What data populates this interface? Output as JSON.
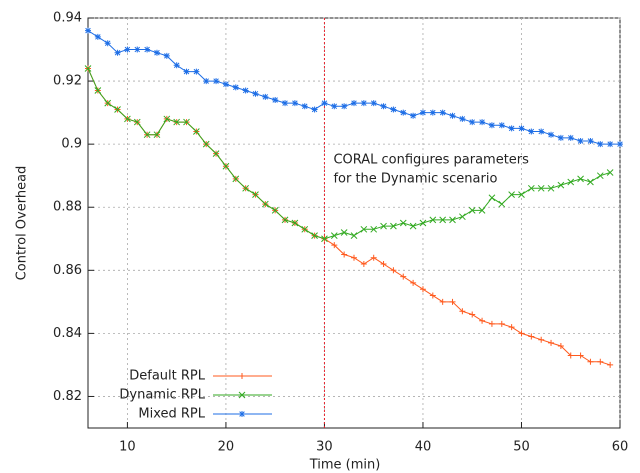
{
  "chart_data": {
    "type": "line",
    "xlabel": "Time (min)",
    "ylabel": "Control Overhead",
    "x": [
      6,
      7,
      8,
      9,
      10,
      11,
      12,
      13,
      14,
      15,
      16,
      17,
      18,
      19,
      20,
      21,
      22,
      23,
      24,
      25,
      26,
      27,
      28,
      29,
      30,
      31,
      32,
      33,
      34,
      35,
      36,
      37,
      38,
      39,
      40,
      41,
      42,
      43,
      44,
      45,
      46,
      47,
      48,
      49,
      50,
      51,
      52,
      53,
      54,
      55,
      56,
      57,
      58,
      59,
      60
    ],
    "series": [
      {
        "name": "Default RPL",
        "color": "#ff5a1e",
        "marker": "plus",
        "values": [
          0.924,
          0.917,
          0.913,
          0.911,
          0.908,
          0.907,
          0.903,
          0.903,
          0.908,
          0.907,
          0.907,
          0.904,
          0.9,
          0.897,
          0.893,
          0.889,
          0.886,
          0.884,
          0.881,
          0.879,
          0.876,
          0.875,
          0.873,
          0.871,
          0.87,
          0.868,
          0.865,
          0.864,
          0.862,
          0.864,
          0.862,
          0.86,
          0.858,
          0.856,
          0.854,
          0.852,
          0.85,
          0.85,
          0.847,
          0.846,
          0.844,
          0.843,
          0.843,
          0.842,
          0.84,
          0.839,
          0.838,
          0.837,
          0.836,
          0.833,
          0.833,
          0.831,
          0.831,
          0.83,
          null
        ]
      },
      {
        "name": "Dynamic RPL",
        "color": "#33aa22",
        "marker": "cross",
        "values": [
          0.924,
          0.917,
          0.913,
          0.911,
          0.908,
          0.907,
          0.903,
          0.903,
          0.908,
          0.907,
          0.907,
          0.904,
          0.9,
          0.897,
          0.893,
          0.889,
          0.886,
          0.884,
          0.881,
          0.879,
          0.876,
          0.875,
          0.873,
          0.871,
          0.87,
          0.871,
          0.872,
          0.871,
          0.873,
          0.873,
          0.874,
          0.874,
          0.875,
          0.874,
          0.875,
          0.876,
          0.876,
          0.876,
          0.877,
          0.879,
          0.879,
          0.883,
          0.881,
          0.884,
          0.884,
          0.886,
          0.886,
          0.886,
          0.887,
          0.888,
          0.889,
          0.888,
          0.89,
          0.891,
          null
        ]
      },
      {
        "name": "Mixed RPL",
        "color": "#1e6ee6",
        "marker": "star",
        "values": [
          0.936,
          0.934,
          0.932,
          0.929,
          0.93,
          0.93,
          0.93,
          0.929,
          0.928,
          0.925,
          0.923,
          0.923,
          0.92,
          0.92,
          0.919,
          0.918,
          0.917,
          0.916,
          0.915,
          0.914,
          0.913,
          0.913,
          0.912,
          0.911,
          0.913,
          0.912,
          0.912,
          0.913,
          0.913,
          0.913,
          0.912,
          0.911,
          0.91,
          0.909,
          0.91,
          0.91,
          0.91,
          0.909,
          0.908,
          0.907,
          0.907,
          0.906,
          0.906,
          0.905,
          0.905,
          0.904,
          0.904,
          0.903,
          0.902,
          0.902,
          0.901,
          0.901,
          0.9,
          0.9,
          0.9
        ]
      }
    ],
    "xlim": [
      6,
      60
    ],
    "xticks": [
      10,
      20,
      30,
      40,
      50,
      60
    ],
    "ylim": [
      0.81,
      0.94
    ],
    "yticks": [
      0.82,
      0.84,
      0.86,
      0.88,
      0.9,
      0.92,
      0.94
    ],
    "grid": true,
    "legend": "lower left",
    "vline": {
      "x": 30,
      "color": "#e8202a"
    },
    "annotation": [
      "CORAL configures parameters",
      "for the Dynamic scenario"
    ]
  }
}
